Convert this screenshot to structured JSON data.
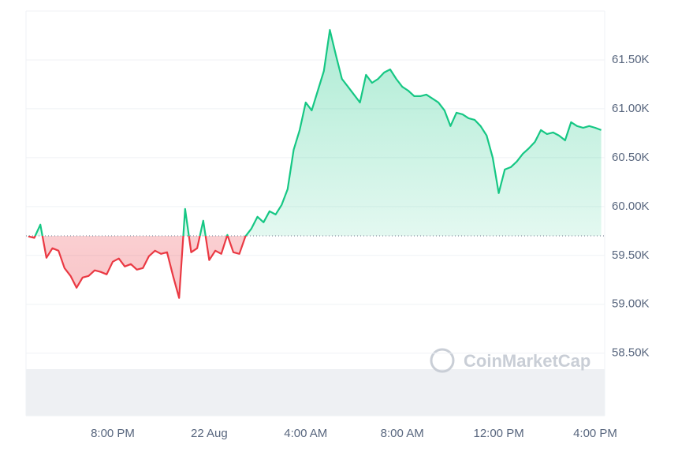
{
  "chart_data": {
    "type": "line",
    "watermark": "CoinMarketCap",
    "categories": [
      null,
      null,
      null,
      null,
      null,
      null,
      null,
      null,
      null,
      null,
      null,
      null,
      null,
      null,
      "8:00 PM",
      null,
      null,
      null,
      null,
      null,
      null,
      null,
      null,
      null,
      null,
      null,
      null,
      null,
      null,
      null,
      "22 Aug",
      null,
      null,
      null,
      null,
      null,
      null,
      null,
      null,
      null,
      null,
      null,
      null,
      null,
      null,
      null,
      "4:00 AM",
      null,
      null,
      null,
      null,
      null,
      null,
      null,
      null,
      null,
      null,
      null,
      null,
      null,
      null,
      null,
      "8:00 AM",
      null,
      null,
      null,
      null,
      null,
      null,
      null,
      null,
      null,
      null,
      null,
      null,
      null,
      null,
      null,
      "12:00 PM",
      null,
      null,
      null,
      null,
      null,
      null,
      null,
      null,
      null,
      null,
      null,
      null,
      null,
      null,
      null,
      "4:00 PM",
      null
    ],
    "values": [
      59694,
      59680,
      59815,
      59476,
      59573,
      59548,
      59371,
      59290,
      59169,
      59274,
      59290,
      59347,
      59331,
      59306,
      59435,
      59468,
      59387,
      59411,
      59355,
      59371,
      59492,
      59548,
      59516,
      59532,
      59290,
      59065,
      59976,
      59532,
      59573,
      59855,
      59452,
      59548,
      59516,
      59710,
      59532,
      59516,
      59694,
      59774,
      59895,
      59839,
      59952,
      59919,
      60016,
      60177,
      60581,
      60782,
      61065,
      60984,
      61185,
      61387,
      61806,
      61548,
      61306,
      61226,
      61145,
      61065,
      61347,
      61266,
      61306,
      61371,
      61403,
      61306,
      61226,
      61185,
      61129,
      61129,
      61145,
      61105,
      61065,
      60984,
      60823,
      60960,
      60944,
      60903,
      60887,
      60823,
      60726,
      60500,
      60137,
      60379,
      60403,
      60460,
      60540,
      60597,
      60661,
      60782,
      60742,
      60758,
      60726,
      60677,
      60863,
      60823,
      60806,
      60823,
      60806,
      60782
    ],
    "baseline": 59700,
    "up_color": "#16c784",
    "down_color": "#ea3943",
    "ylim": [
      57860,
      62000
    ],
    "yticks": [
      {
        "value": 58500,
        "label": "58.50K"
      },
      {
        "value": 59000,
        "label": "59.00K"
      },
      {
        "value": 59500,
        "label": "59.50K"
      },
      {
        "value": 60000,
        "label": "60.00K"
      },
      {
        "value": 60500,
        "label": "60.50K"
      },
      {
        "value": 61000,
        "label": "61.00K"
      },
      {
        "value": 61500,
        "label": "61.50K"
      }
    ],
    "grid": true
  }
}
